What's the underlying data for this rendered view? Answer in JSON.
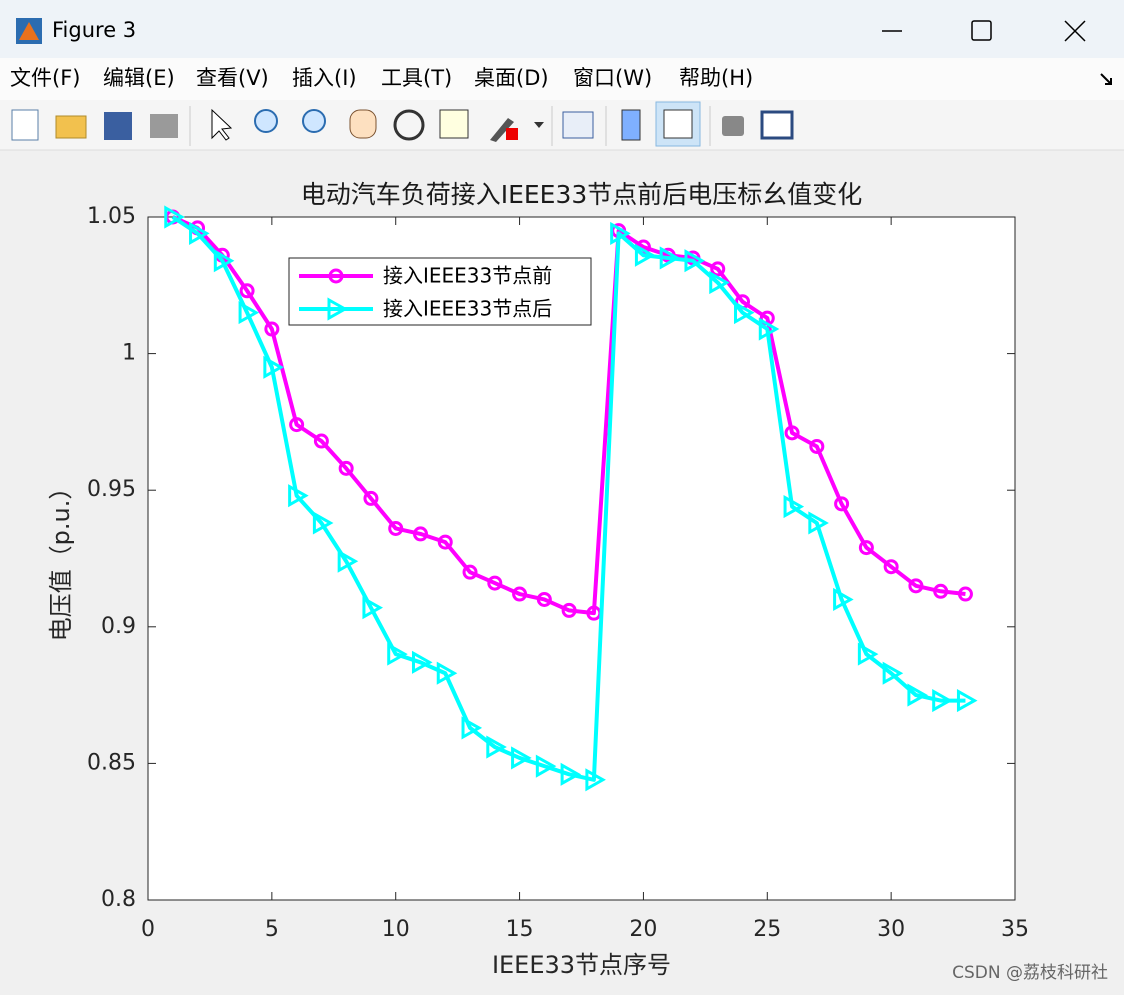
{
  "window": {
    "title": "Figure 3",
    "menu": [
      "文件(F)",
      "编辑(E)",
      "查看(V)",
      "插入(I)",
      "工具(T)",
      "桌面(D)",
      "窗口(W)",
      "帮助(H)"
    ],
    "watermark": "CSDN @荔枝科研社"
  },
  "chart_data": {
    "type": "line",
    "title": "电动汽车负荷接入IEEE33节点前后电压标幺值变化",
    "x_label": "IEEE33节点序号",
    "y_label": "电压值（p.u.）",
    "x": [
      1,
      2,
      3,
      4,
      5,
      6,
      7,
      8,
      9,
      10,
      11,
      12,
      13,
      14,
      15,
      16,
      17,
      18,
      19,
      20,
      21,
      22,
      23,
      24,
      25,
      26,
      27,
      28,
      29,
      30,
      31,
      32,
      33
    ],
    "series": [
      {
        "name": "接入IEEE33节点前",
        "color": "#ff00ff",
        "marker": "circle",
        "values": [
          1.05,
          1.046,
          1.036,
          1.023,
          1.009,
          0.974,
          0.968,
          0.958,
          0.947,
          0.936,
          0.934,
          0.931,
          0.92,
          0.916,
          0.912,
          0.91,
          0.906,
          0.905,
          1.045,
          1.039,
          1.036,
          1.035,
          1.031,
          1.019,
          1.013,
          0.971,
          0.966,
          0.945,
          0.929,
          0.922,
          0.915,
          0.913,
          0.912
        ]
      },
      {
        "name": "接入IEEE33节点后",
        "color": "#00ffff",
        "marker": "triangle-right",
        "values": [
          1.05,
          1.044,
          1.034,
          1.015,
          0.995,
          0.948,
          0.938,
          0.924,
          0.907,
          0.89,
          0.887,
          0.883,
          0.863,
          0.856,
          0.852,
          0.849,
          0.846,
          0.844,
          1.044,
          1.036,
          1.035,
          1.034,
          1.026,
          1.015,
          1.009,
          0.944,
          0.938,
          0.91,
          0.89,
          0.883,
          0.875,
          0.873,
          0.873
        ]
      }
    ],
    "xlim": [
      0,
      35
    ],
    "xticks": [
      0,
      5,
      10,
      15,
      20,
      25,
      30,
      35
    ],
    "ylim": [
      0.8,
      1.05
    ],
    "yticks": [
      0.8,
      0.85,
      0.9,
      0.95,
      1,
      1.05
    ],
    "legend": "upper-left"
  }
}
